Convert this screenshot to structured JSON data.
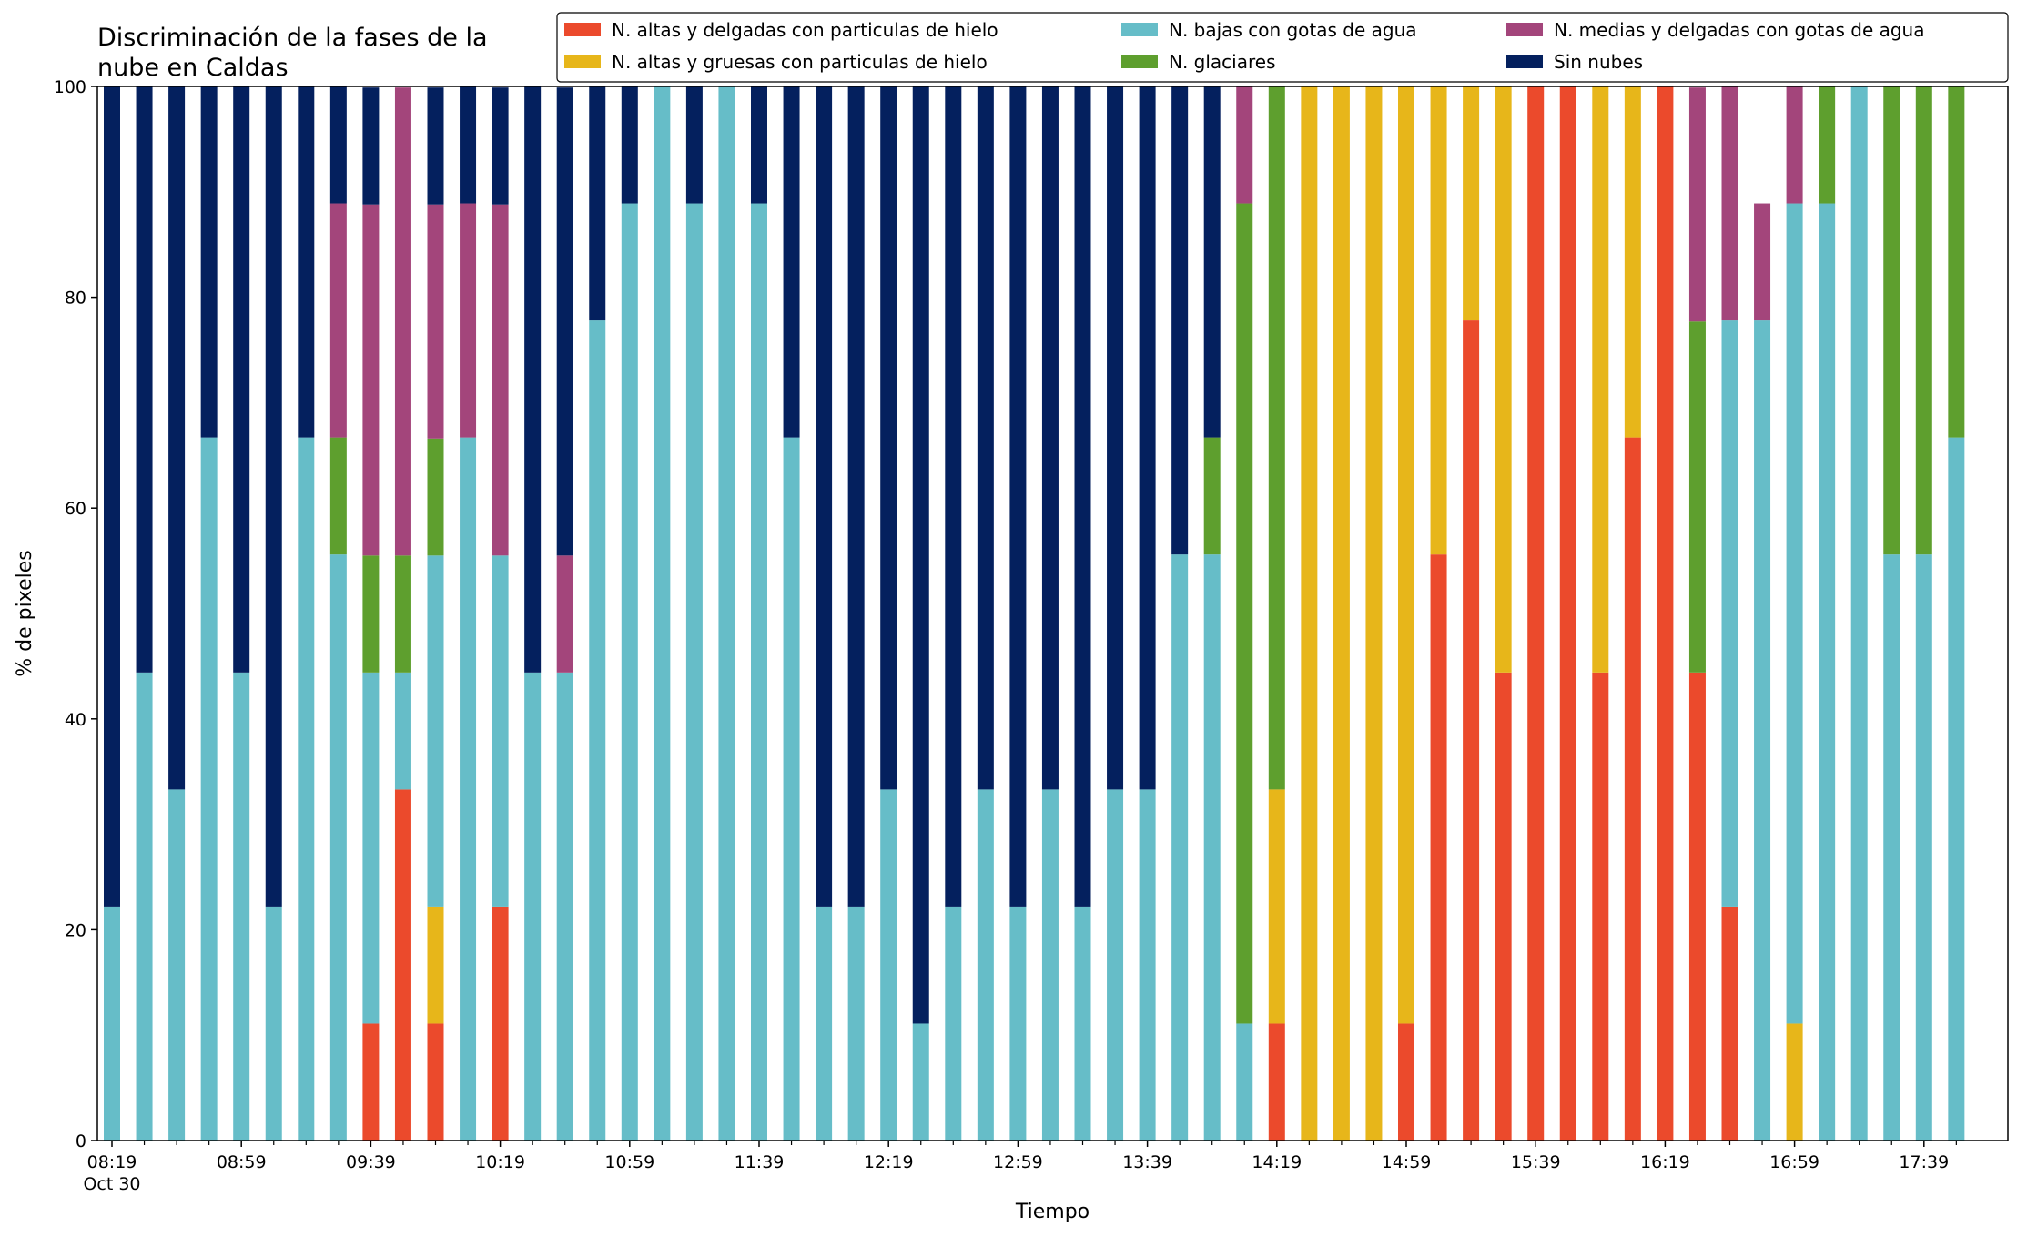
{
  "chart_data": {
    "type": "bar",
    "stacked": true,
    "title": "Discriminación de la fases de la\nnube en Caldas",
    "xlabel": "Tiempo",
    "ylabel": "% de pixeles",
    "ylim": [
      0,
      100
    ],
    "yticks": [
      0,
      20,
      40,
      60,
      80,
      100
    ],
    "grid": false,
    "legend_position": "top-right",
    "x": [
      "08:19",
      "08:29",
      "08:39",
      "08:49",
      "08:59",
      "09:09",
      "09:19",
      "09:29",
      "09:39",
      "09:49",
      "09:59",
      "10:09",
      "10:19",
      "10:29",
      "10:39",
      "10:49",
      "10:59",
      "11:09",
      "11:19",
      "11:29",
      "11:39",
      "11:49",
      "11:59",
      "12:09",
      "12:19",
      "12:29",
      "12:39",
      "12:49",
      "12:59",
      "13:09",
      "13:19",
      "13:29",
      "13:39",
      "13:49",
      "13:59",
      "14:09",
      "14:19",
      "14:29",
      "14:39",
      "14:49",
      "14:59",
      "15:09",
      "15:19",
      "15:29",
      "15:39",
      "15:49",
      "15:59",
      "16:09",
      "16:19",
      "16:29",
      "16:39",
      "16:49",
      "16:59",
      "17:09",
      "17:19",
      "17:29",
      "17:39",
      "17:49"
    ],
    "xticklabels": [
      "08:19",
      "08:59",
      "09:39",
      "10:19",
      "10:59",
      "11:39",
      "12:19",
      "12:59",
      "13:39",
      "14:19",
      "14:59",
      "15:39",
      "16:19",
      "16:59",
      "17:39"
    ],
    "xticklabel_sub": "Oct 30",
    "series": [
      {
        "name": "N. altas y delgadas con particulas de hielo",
        "color": "#EB4A2C",
        "values": [
          0,
          0,
          0,
          0,
          0,
          0,
          0,
          0,
          11.1,
          33.3,
          11.1,
          0,
          22.2,
          0,
          0,
          0,
          0,
          0,
          0,
          0,
          0,
          0,
          0,
          0,
          0,
          0,
          0,
          0,
          0,
          0,
          0,
          0,
          0,
          0,
          0,
          0,
          11.1,
          0,
          0,
          0,
          11.1,
          55.6,
          77.8,
          44.4,
          100,
          100,
          44.4,
          66.7,
          100,
          44.4,
          22.2,
          0,
          0,
          0,
          0,
          0,
          0,
          0
        ]
      },
      {
        "name": "N. altas y gruesas con particulas de hielo",
        "color": "#E7B61A",
        "values": [
          0,
          0,
          0,
          0,
          0,
          0,
          0,
          0,
          0,
          0,
          11.1,
          0,
          0,
          0,
          0,
          0,
          0,
          0,
          0,
          0,
          0,
          0,
          0,
          0,
          0,
          0,
          0,
          0,
          0,
          0,
          0,
          0,
          0,
          0,
          0,
          0,
          22.2,
          100,
          100,
          100,
          88.9,
          44.4,
          22.2,
          55.6,
          0,
          0,
          55.6,
          33.3,
          0,
          0,
          0,
          0,
          11.1,
          0,
          0,
          0,
          0,
          0
        ]
      },
      {
        "name": "N. bajas con gotas de agua",
        "color": "#66BDC8",
        "values": [
          22.2,
          44.4,
          33.3,
          66.7,
          44.4,
          22.2,
          66.7,
          55.6,
          33.3,
          11.1,
          33.3,
          66.7,
          33.3,
          44.4,
          44.4,
          77.8,
          88.9,
          100,
          88.9,
          100,
          88.9,
          66.7,
          22.2,
          22.2,
          33.3,
          11.1,
          22.2,
          33.3,
          22.2,
          33.3,
          22.2,
          33.3,
          33.3,
          55.6,
          55.6,
          11.1,
          0,
          0,
          0,
          0,
          0,
          0,
          0,
          0,
          0,
          0,
          0,
          0,
          0,
          0,
          55.6,
          77.8,
          77.8,
          88.9,
          100,
          55.6,
          55.6,
          66.7
        ]
      },
      {
        "name": "N. glaciares",
        "color": "#5E9F2E",
        "values": [
          0,
          0,
          0,
          0,
          0,
          0,
          0,
          11.1,
          11.1,
          11.1,
          11.1,
          0,
          0,
          0,
          0,
          0,
          0,
          0,
          0,
          0,
          0,
          0,
          0,
          0,
          0,
          0,
          0,
          0,
          0,
          0,
          0,
          0,
          0,
          0,
          11.1,
          77.8,
          66.7,
          0,
          0,
          0,
          0,
          0,
          0,
          0,
          0,
          0,
          0,
          0,
          0,
          33.3,
          0,
          0,
          0,
          11.1,
          0,
          44.4,
          44.4,
          33.3
        ]
      },
      {
        "name": "N. medias y delgadas con gotas de agua",
        "color": "#A3457B",
        "values": [
          0,
          0,
          0,
          0,
          0,
          0,
          0,
          22.2,
          33.3,
          44.4,
          22.2,
          22.2,
          33.3,
          0,
          11.1,
          0,
          0,
          0,
          0,
          0,
          0,
          0,
          0,
          0,
          0,
          0,
          0,
          0,
          0,
          0,
          0,
          0,
          0,
          0,
          0,
          11.1,
          0,
          0,
          0,
          0,
          0,
          0,
          0,
          0,
          0,
          0,
          0,
          0,
          0,
          22.2,
          22.2,
          11.1,
          11.1,
          0,
          0,
          0,
          0,
          0
        ]
      },
      {
        "name": "Sin nubes",
        "color": "#04205E",
        "values": [
          77.8,
          55.6,
          66.7,
          33.3,
          55.6,
          77.8,
          33.3,
          11.1,
          11.1,
          0,
          11.1,
          11.1,
          11.1,
          55.6,
          44.4,
          22.2,
          11.1,
          0,
          11.1,
          0,
          11.1,
          33.3,
          77.8,
          77.8,
          66.7,
          88.9,
          77.8,
          66.7,
          77.8,
          66.7,
          77.8,
          66.7,
          66.7,
          44.4,
          33.3,
          0,
          0,
          0,
          0,
          0,
          0,
          0,
          0,
          0,
          0,
          0,
          0,
          0,
          0,
          0,
          0,
          0,
          0,
          0,
          0,
          0,
          0,
          0
        ]
      }
    ]
  }
}
